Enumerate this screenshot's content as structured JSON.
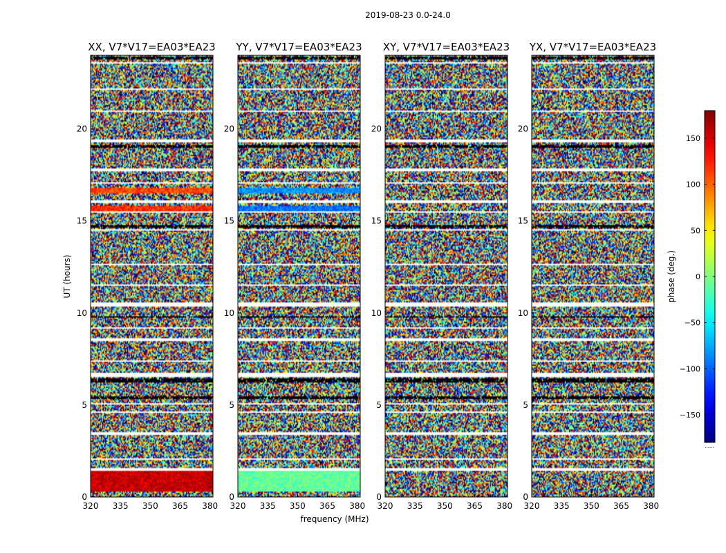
{
  "figure": {
    "suptitle": "2019-08-23 0.0-24.0",
    "xlabel": "frequency (MHz)",
    "ylabel": "UT (hours)",
    "colorbar_label": "phase (deg.)",
    "colorbar_footnote": "......"
  },
  "chart_data": [
    {
      "type": "heatmap",
      "title": "XX, V7*V17=EA03*EA23",
      "quantity": "phase",
      "x_ticks": [
        320,
        335,
        350,
        365,
        380
      ],
      "y_ticks": [
        0,
        5,
        10,
        15,
        20
      ],
      "xlim": [
        320,
        381.5
      ],
      "ylim": [
        0,
        24
      ],
      "features": [
        {
          "ut_range": [
            0.3,
            1.4
          ],
          "phase_deg": 155
        },
        {
          "ut_range": [
            15.55,
            15.8
          ],
          "phase_deg": 120
        },
        {
          "ut_range": [
            16.5,
            16.8
          ],
          "phase_deg": 110
        }
      ]
    },
    {
      "type": "heatmap",
      "title": "YY, V7*V17=EA03*EA23",
      "quantity": "phase",
      "x_ticks": [
        320,
        335,
        350,
        365,
        380
      ],
      "y_ticks": [
        0,
        5,
        10,
        15,
        20
      ],
      "xlim": [
        320,
        381.5
      ],
      "ylim": [
        0,
        24
      ],
      "features": [
        {
          "ut_range": [
            0.3,
            1.4
          ],
          "phase_deg": -10
        },
        {
          "ut_range": [
            15.55,
            15.8
          ],
          "phase_deg": -95
        },
        {
          "ut_range": [
            16.5,
            16.8
          ],
          "phase_deg": -85
        }
      ]
    },
    {
      "type": "heatmap",
      "title": "XY, V7*V17=EA03*EA23",
      "quantity": "phase",
      "x_ticks": [
        320,
        335,
        350,
        365,
        380
      ],
      "y_ticks": [
        0,
        5,
        10,
        15,
        20
      ],
      "xlim": [
        320,
        381.5
      ],
      "ylim": [
        0,
        24
      ],
      "features": []
    },
    {
      "type": "heatmap",
      "title": "YX, V7*V17=EA03*EA23",
      "quantity": "phase",
      "x_ticks": [
        320,
        335,
        350,
        365,
        380
      ],
      "y_ticks": [
        0,
        5,
        10,
        15,
        20
      ],
      "xlim": [
        320,
        381.5
      ],
      "ylim": [
        0,
        24
      ],
      "features": []
    }
  ],
  "shared": {
    "flagged_ut_ranges": [
      [
        1.4,
        1.55
      ],
      [
        2.05,
        2.1
      ],
      [
        3.4,
        3.5
      ],
      [
        4.6,
        4.65
      ],
      [
        5.05,
        5.1
      ],
      [
        6.5,
        6.75
      ],
      [
        7.35,
        7.4
      ],
      [
        8.5,
        8.6
      ],
      [
        9.15,
        9.2
      ],
      [
        10.35,
        10.55
      ],
      [
        11.5,
        11.55
      ],
      [
        12.6,
        12.65
      ],
      [
        13.25,
        13.3
      ],
      [
        14.5,
        14.55
      ],
      [
        15.45,
        15.5
      ],
      [
        16.0,
        16.1
      ],
      [
        17.05,
        17.1
      ],
      [
        17.7,
        17.85
      ],
      [
        19.25,
        19.45
      ],
      [
        20.95,
        21.0
      ],
      [
        22.15,
        22.2
      ],
      [
        23.3,
        23.35
      ],
      [
        23.55,
        23.6
      ]
    ],
    "dark_ut_ranges": [
      [
        5.35,
        5.5
      ],
      [
        6.25,
        6.45
      ],
      [
        8.0,
        8.05
      ],
      [
        9.75,
        9.85
      ],
      [
        14.6,
        14.75
      ],
      [
        18.95,
        19.15
      ],
      [
        23.0,
        23.05
      ],
      [
        23.8,
        23.9
      ]
    ]
  },
  "colorbar": {
    "range": [
      -180,
      180
    ],
    "ticks": [
      -150,
      -100,
      -50,
      0,
      50,
      100,
      150
    ],
    "tick_labels": [
      "−150",
      "−100",
      "−50",
      "0",
      "50",
      "100",
      "150"
    ],
    "colormap": "jet"
  },
  "colors": {
    "flagged": "#ffffff",
    "dark_row": "#000000",
    "axes": "#000000"
  }
}
